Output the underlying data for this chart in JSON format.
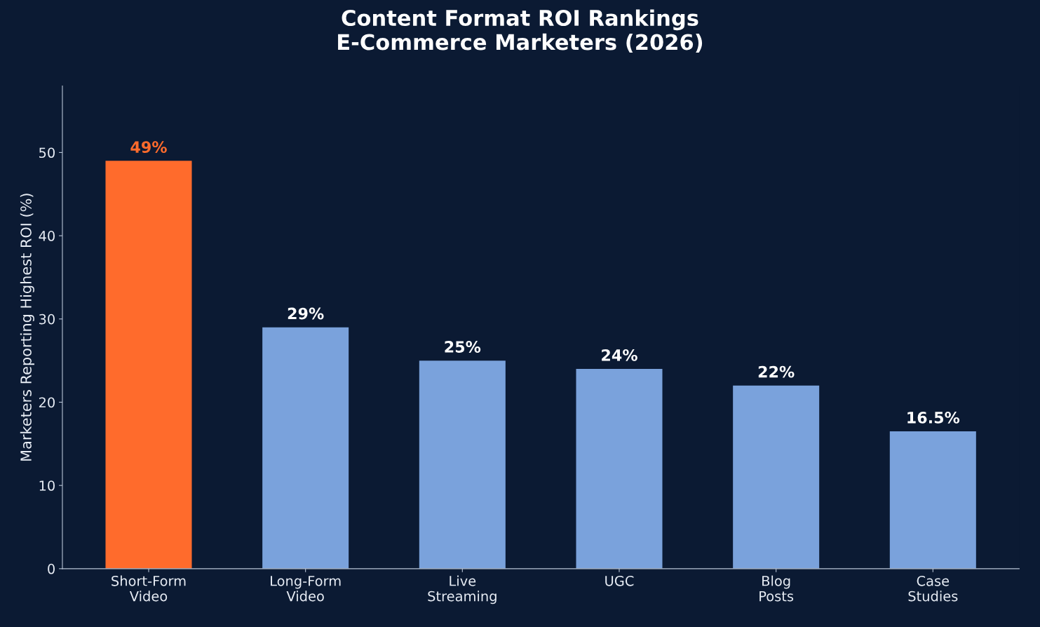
{
  "chart_data": {
    "type": "bar",
    "title": "Content Format ROI Rankings\nE-Commerce Marketers (2026)",
    "ylabel": "Marketers Reporting Highest ROI (%)",
    "categories": [
      "Short-Form\nVideo",
      "Long-Form\nVideo",
      "Live\nStreaming",
      "UGC",
      "Blog\nPosts",
      "Case\nStudies"
    ],
    "values": [
      49,
      29,
      25,
      24,
      22,
      16.5
    ],
    "colors": [
      "#ff6b2c",
      "#7aa2dc",
      "#7aa2dc",
      "#7aa2dc",
      "#7aa2dc",
      "#7aa2dc"
    ],
    "value_labels": [
      "49%",
      "29%",
      "25%",
      "24%",
      "22%",
      "16.5%"
    ],
    "ylim": [
      0,
      58
    ],
    "yticks": [
      0,
      10,
      20,
      30,
      40,
      50
    ],
    "grid": false
  }
}
